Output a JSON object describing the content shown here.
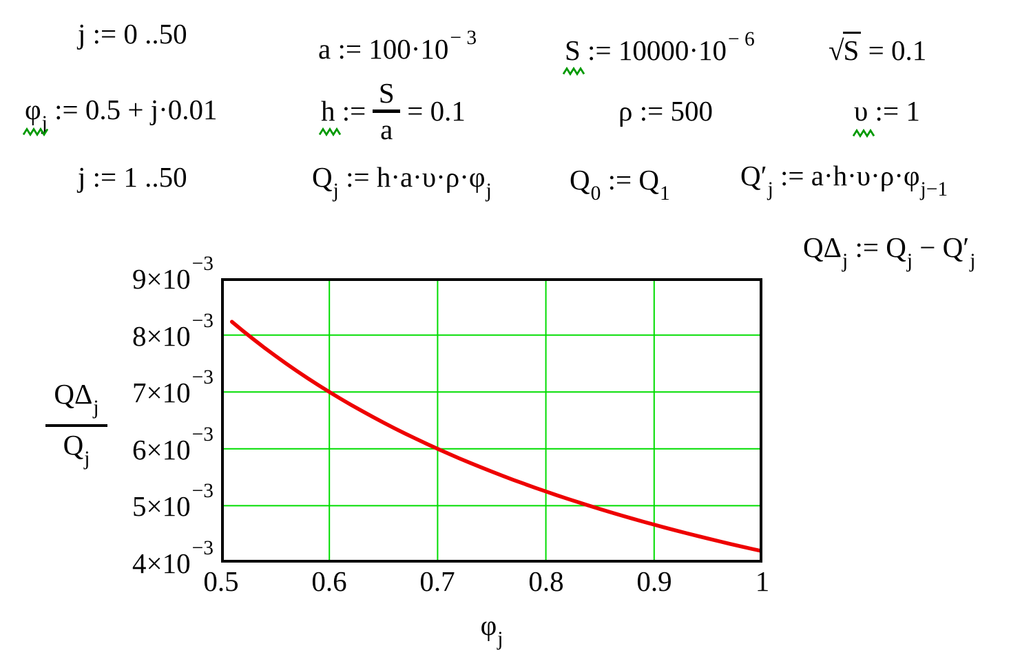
{
  "colors": {
    "text": "#000000",
    "squiggle": "#009900",
    "grid": "#00dd00",
    "trace": "#ee0000",
    "frame": "#000000",
    "background": "#ffffff"
  },
  "expressions": {
    "j_range1": "j := 0 ..50",
    "a_def": "a := 100·10^{− 3}",
    "S_def": "S := 10000·10^{− 6}",
    "sqrtS_eval": "√{S} = 0.1",
    "phi_def": "φ_{j} := 0.5 + j·0.01",
    "h_def": {
      "lhs": "h :=",
      "numerator": "S",
      "denominator": "a",
      "rhs": "= 0.1"
    },
    "rho_def": "ρ := 500",
    "upsilon_def": "υ := 1",
    "j_range2": "j := 1 ..50",
    "Q_def": "Q_{j} := h·a·υ·ρ·φ_{j}",
    "Q0_def": "Q_{0} := Q_{1}",
    "Qprime_def": "Q′_{j} := a·h·υ·ρ·φ_{j−1}",
    "Qdelta_def": "QΔ_{j} := Q_{j} − Q′_{j}",
    "redefined_variables": [
      "S",
      "φ",
      "h",
      "υ"
    ]
  },
  "chart_data": {
    "type": "line",
    "xlabel": "φ_{j}",
    "ylabel_numerator": "QΔ_{j}",
    "ylabel_denominator": "Q_{j}",
    "xlim": [
      0.5,
      1.0
    ],
    "ylim": [
      0.004,
      0.009
    ],
    "grid_on": true,
    "x_gridlines": [
      0.6,
      0.7,
      0.8,
      0.9
    ],
    "y_gridlines": [
      0.005,
      0.006,
      0.007,
      0.008
    ],
    "xtick_labels": [
      "0.5",
      "0.6",
      "0.7",
      "0.8",
      "0.9",
      "1"
    ],
    "ytick_labels": [
      "9×10^{−3}",
      "8×10^{−3}",
      "7×10^{−3}",
      "6×10^{−3}",
      "5×10^{−3}",
      "4×10^{−3}"
    ],
    "series": [
      {
        "name": "QΔj/Qj",
        "color": "#ee0000",
        "x": [
          0.51,
          0.52,
          0.53,
          0.54,
          0.55,
          0.56,
          0.57,
          0.58,
          0.59,
          0.6,
          0.61,
          0.62,
          0.63,
          0.64,
          0.65,
          0.66,
          0.67,
          0.68,
          0.69,
          0.7,
          0.71,
          0.72,
          0.73,
          0.74,
          0.75,
          0.76,
          0.77,
          0.78,
          0.79,
          0.8,
          0.81,
          0.82,
          0.83,
          0.84,
          0.85,
          0.86,
          0.87,
          0.88,
          0.89,
          0.9,
          0.91,
          0.92,
          0.93,
          0.94,
          0.95,
          0.96,
          0.97,
          0.98,
          0.99,
          1.0
        ],
        "y": [
          0.0082353,
          0.0080769,
          0.0079245,
          0.0077778,
          0.0076364,
          0.0075,
          0.0073684,
          0.0072414,
          0.0071186,
          0.007,
          0.0068852,
          0.0067742,
          0.0066667,
          0.0065625,
          0.0064615,
          0.0063636,
          0.0062687,
          0.0061765,
          0.006087,
          0.006,
          0.0059155,
          0.0058333,
          0.0057534,
          0.0056757,
          0.0056,
          0.0055263,
          0.0054545,
          0.0053846,
          0.0053165,
          0.00525,
          0.0051852,
          0.005122,
          0.0050602,
          0.005,
          0.0049412,
          0.0048837,
          0.0048276,
          0.0047727,
          0.0047191,
          0.0046667,
          0.0046154,
          0.0045652,
          0.0045161,
          0.0044681,
          0.0044211,
          0.004375,
          0.0043299,
          0.0042857,
          0.0042424,
          0.0042
        ]
      }
    ]
  }
}
